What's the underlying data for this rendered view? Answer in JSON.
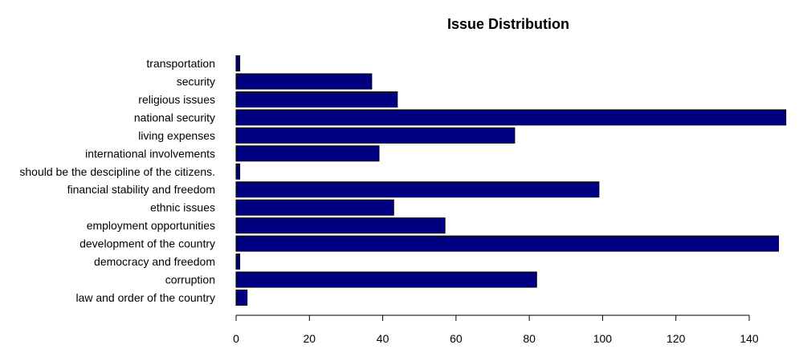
{
  "chart_data": {
    "type": "bar",
    "orientation": "horizontal",
    "title": "Issue Distribution",
    "xlabel": "",
    "ylabel": "",
    "categories": [
      "law and order of the country",
      "corruption",
      "democracy and freedom",
      "development of the country",
      "employment opportunities",
      "ethnic issues",
      "financial stability and freedom",
      "should be the descipline of the citizens.",
      "international involvements",
      "living expenses",
      "national security",
      "religious issues",
      "security",
      "transportation"
    ],
    "values": [
      3,
      82,
      1,
      148,
      57,
      43,
      99,
      1,
      39,
      76,
      150,
      44,
      37,
      1
    ],
    "xlim": [
      0,
      150
    ],
    "xticks": [
      0,
      20,
      40,
      60,
      80,
      100,
      120,
      140
    ],
    "bar_color": "#000080",
    "grid": false,
    "legend": "none"
  }
}
